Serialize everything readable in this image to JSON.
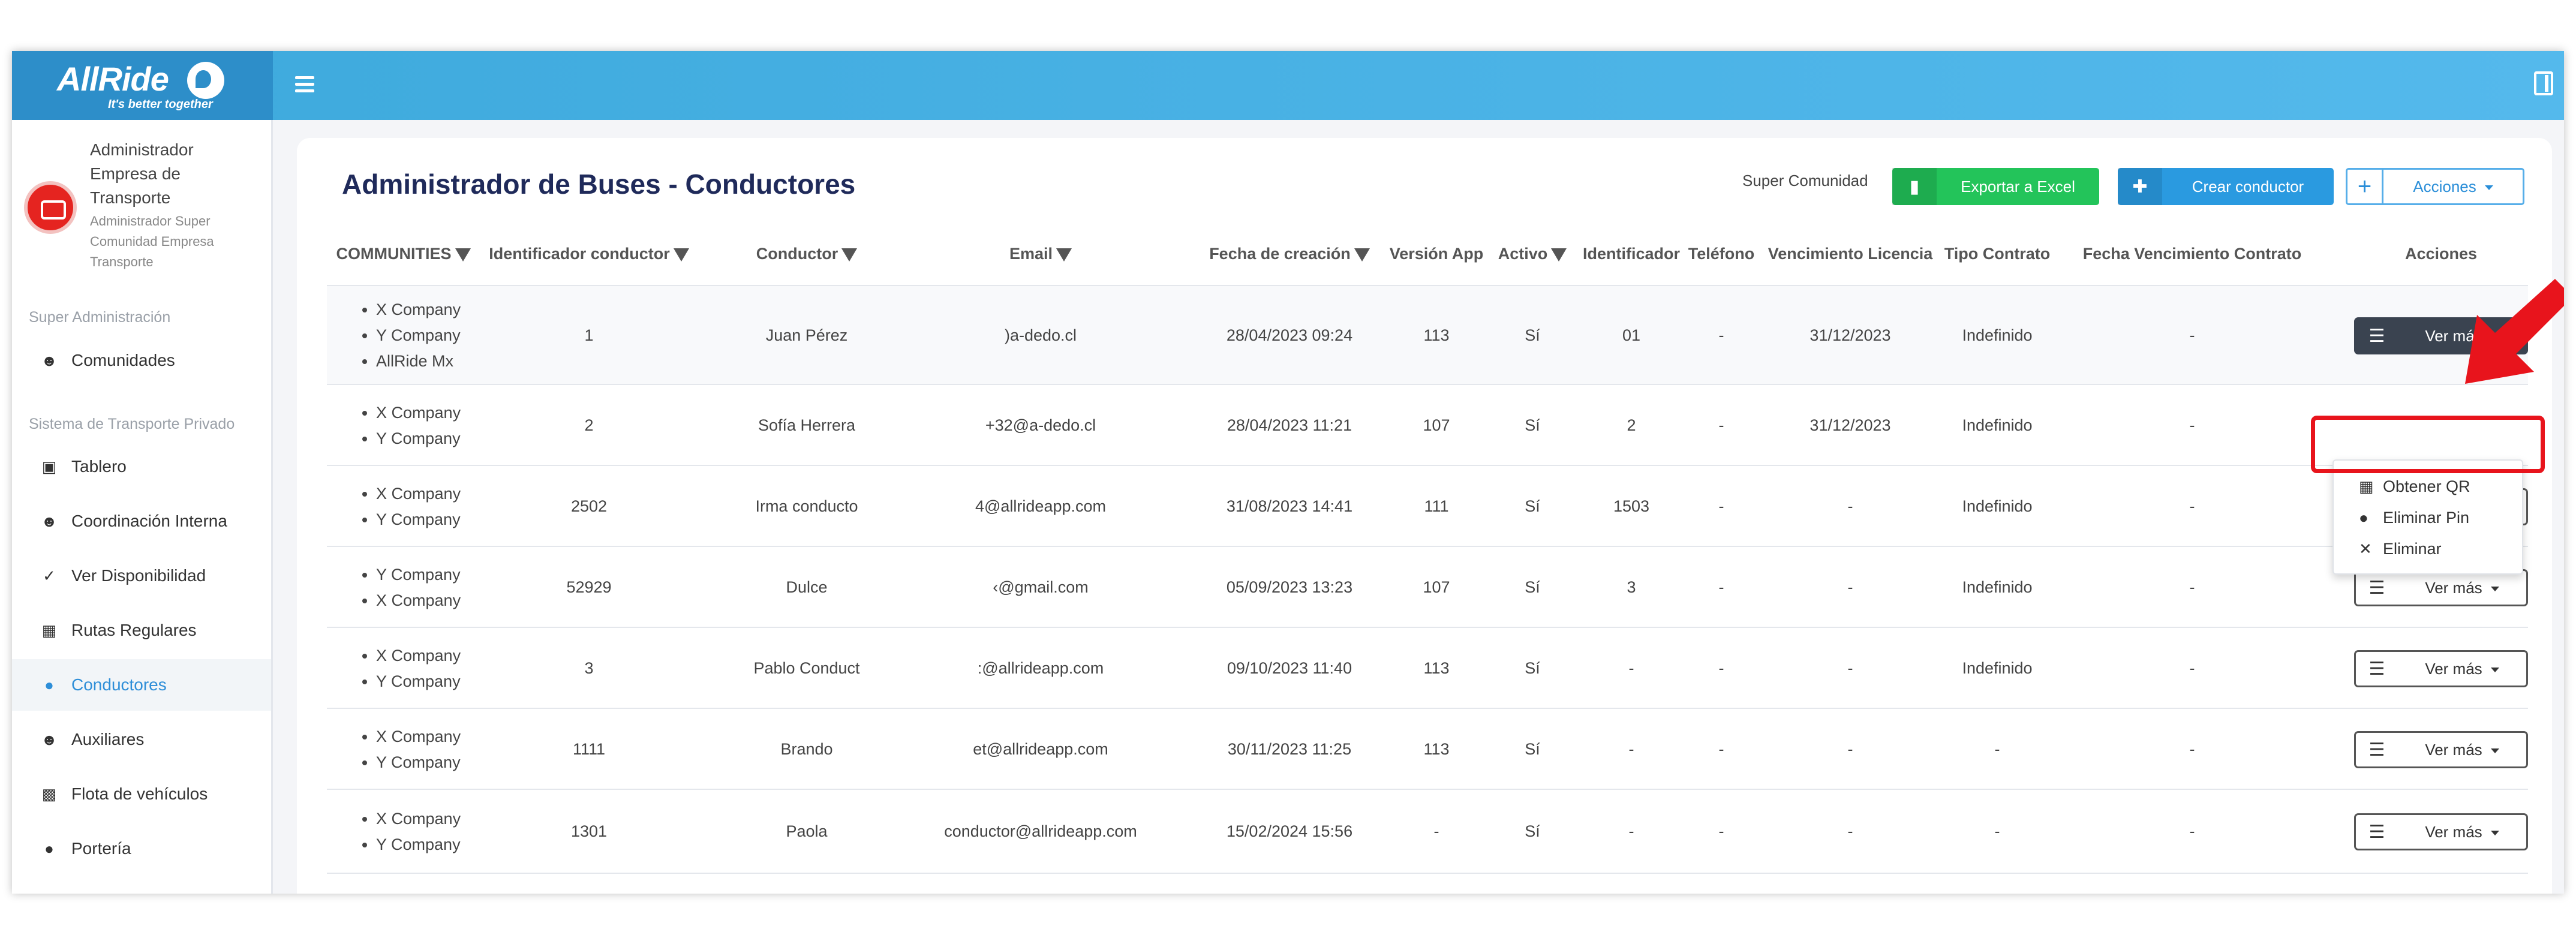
{
  "app": {
    "brand": "AllRide",
    "tagline": "It's better together"
  },
  "user": {
    "name": "Administrador Empresa de Transporte",
    "role": "Administrador Super Comunidad Empresa Transporte"
  },
  "sidebar": {
    "section_super": "Super Administración",
    "section_private": "Sistema de Transporte Privado",
    "items": [
      {
        "label": "Comunidades",
        "icon": "users-icon"
      },
      {
        "label": "Tablero",
        "icon": "map-icon"
      },
      {
        "label": "Coordinación Interna",
        "icon": "users-icon"
      },
      {
        "label": "Ver Disponibilidad",
        "icon": "user-check-icon"
      },
      {
        "label": "Rutas Regulares",
        "icon": "bus-icon"
      },
      {
        "label": "Conductores",
        "icon": "user-icon"
      },
      {
        "label": "Auxiliares",
        "icon": "users-icon"
      },
      {
        "label": "Flota de vehículos",
        "icon": "truck-icon"
      },
      {
        "label": "Portería",
        "icon": "user-icon"
      }
    ]
  },
  "page": {
    "title": "Administrador de Buses - Conductores",
    "community_label": "Super Comunidad",
    "export_label": "Exportar a Excel",
    "create_label": "Crear conductor",
    "actions_label": "Acciones"
  },
  "table": {
    "columns": [
      "COMMUNITIES",
      "Identificador conductor",
      "Conductor",
      "Email",
      "Fecha de creación",
      "Versión App",
      "Activo",
      "Identificador",
      "Teléfono",
      "Vencimiento Licencia",
      "Tipo Contrato",
      "Fecha Vencimiento Contrato",
      "Acciones"
    ],
    "action_label": "Ver más",
    "rows": [
      {
        "communities": [
          "X Company",
          "Y Company",
          "AllRide Mx"
        ],
        "id": "1",
        "driver": "Juan Pérez",
        "email": ")a-dedo.cl",
        "created": "28/04/2023 09:24",
        "version": "113",
        "active": "Sí",
        "identifier": "01",
        "phone": "-",
        "license": "31/12/2023",
        "contract": "Indefinido",
        "contract_end": "-"
      },
      {
        "communities": [
          "X Company",
          "Y Company"
        ],
        "id": "2",
        "driver": "Sofía Herrera",
        "email": "+32@a-dedo.cl",
        "created": "28/04/2023 11:21",
        "version": "107",
        "active": "Sí",
        "identifier": "2",
        "phone": "-",
        "license": "31/12/2023",
        "contract": "Indefinido",
        "contract_end": "-"
      },
      {
        "communities": [
          "X Company",
          "Y Company"
        ],
        "id": "2502",
        "driver": "Irma conducto",
        "email": "4@allrideapp.com",
        "created": "31/08/2023 14:41",
        "version": "111",
        "active": "Sí",
        "identifier": "1503",
        "phone": "-",
        "license": "-",
        "contract": "Indefinido",
        "contract_end": "-"
      },
      {
        "communities": [
          "Y Company",
          "X Company"
        ],
        "id": "52929",
        "driver": "Dulce",
        "email": "‹@gmail.com",
        "created": "05/09/2023 13:23",
        "version": "107",
        "active": "Sí",
        "identifier": "3",
        "phone": "-",
        "license": "-",
        "contract": "Indefinido",
        "contract_end": "-"
      },
      {
        "communities": [
          "X Company",
          "Y Company"
        ],
        "id": "3",
        "driver": "Pablo Conduct",
        "email": ":@allrideapp.com",
        "created": "09/10/2023 11:40",
        "version": "113",
        "active": "Sí",
        "identifier": "-",
        "phone": "-",
        "license": "-",
        "contract": "Indefinido",
        "contract_end": "-"
      },
      {
        "communities": [
          "X Company",
          "Y Company"
        ],
        "id": "1111",
        "driver": "Brando",
        "email": "et@allrideapp.com",
        "created": "30/11/2023 11:25",
        "version": "113",
        "active": "Sí",
        "identifier": "-",
        "phone": "-",
        "license": "-",
        "contract": "-",
        "contract_end": "-"
      },
      {
        "communities": [
          "X Company",
          "Y Company"
        ],
        "id": "1301",
        "driver": "Paola",
        "email": "conductor@allrideapp.com",
        "created": "15/02/2024 15:56",
        "version": "-",
        "active": "Sí",
        "identifier": "-",
        "phone": "-",
        "license": "-",
        "contract": "-",
        "contract_end": "-"
      }
    ]
  },
  "dropdown": {
    "items": [
      {
        "label": "Obtener QR",
        "icon": "qr-icon"
      },
      {
        "label": "Eliminar Pin",
        "icon": "user-remove-icon"
      },
      {
        "label": "Eliminar",
        "icon": "close-icon"
      }
    ]
  },
  "colors": {
    "topbar": "#4bb3e6",
    "excel": "#23c45a",
    "primary": "#2a9ae0",
    "highlight": "#e8141c"
  }
}
